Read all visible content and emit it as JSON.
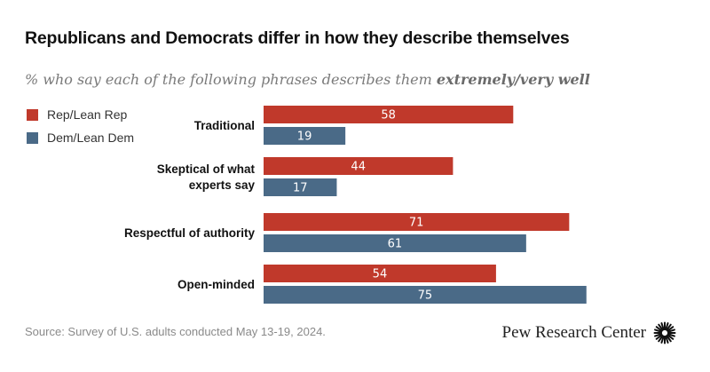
{
  "header": {
    "title": "Republicans and Democrats differ in how they describe themselves",
    "subtitle_prefix": "% who say each of the following phrases describes them ",
    "subtitle_emphasis": "extremely/very well"
  },
  "colors": {
    "rep": "#c0392b",
    "dem": "#4a6a87"
  },
  "chart_data": {
    "type": "bar",
    "orientation": "horizontal",
    "categories": [
      "Traditional",
      "Skeptical of what experts say",
      "Respectful of authority",
      "Open-minded"
    ],
    "category_lines": [
      [
        "Traditional"
      ],
      [
        "Skeptical of what",
        "experts say"
      ],
      [
        "Respectful of authority"
      ],
      [
        "Open-minded"
      ]
    ],
    "series": [
      {
        "name": "Rep/Lean Rep",
        "values": [
          58,
          44,
          71,
          54
        ]
      },
      {
        "name": "Dem/Lean Dem",
        "values": [
          19,
          17,
          61,
          75
        ]
      }
    ],
    "title": "Republicans and Democrats differ in how they describe themselves",
    "xlabel": "",
    "ylabel": "",
    "xlim": [
      0,
      100
    ],
    "legend": "top-left"
  },
  "footer": {
    "source": "Source: Survey of U.S. adults conducted May 13-19, 2024.",
    "brand": "Pew Research Center"
  },
  "icons": {
    "brand_logo": "sunburst-logo-icon"
  }
}
